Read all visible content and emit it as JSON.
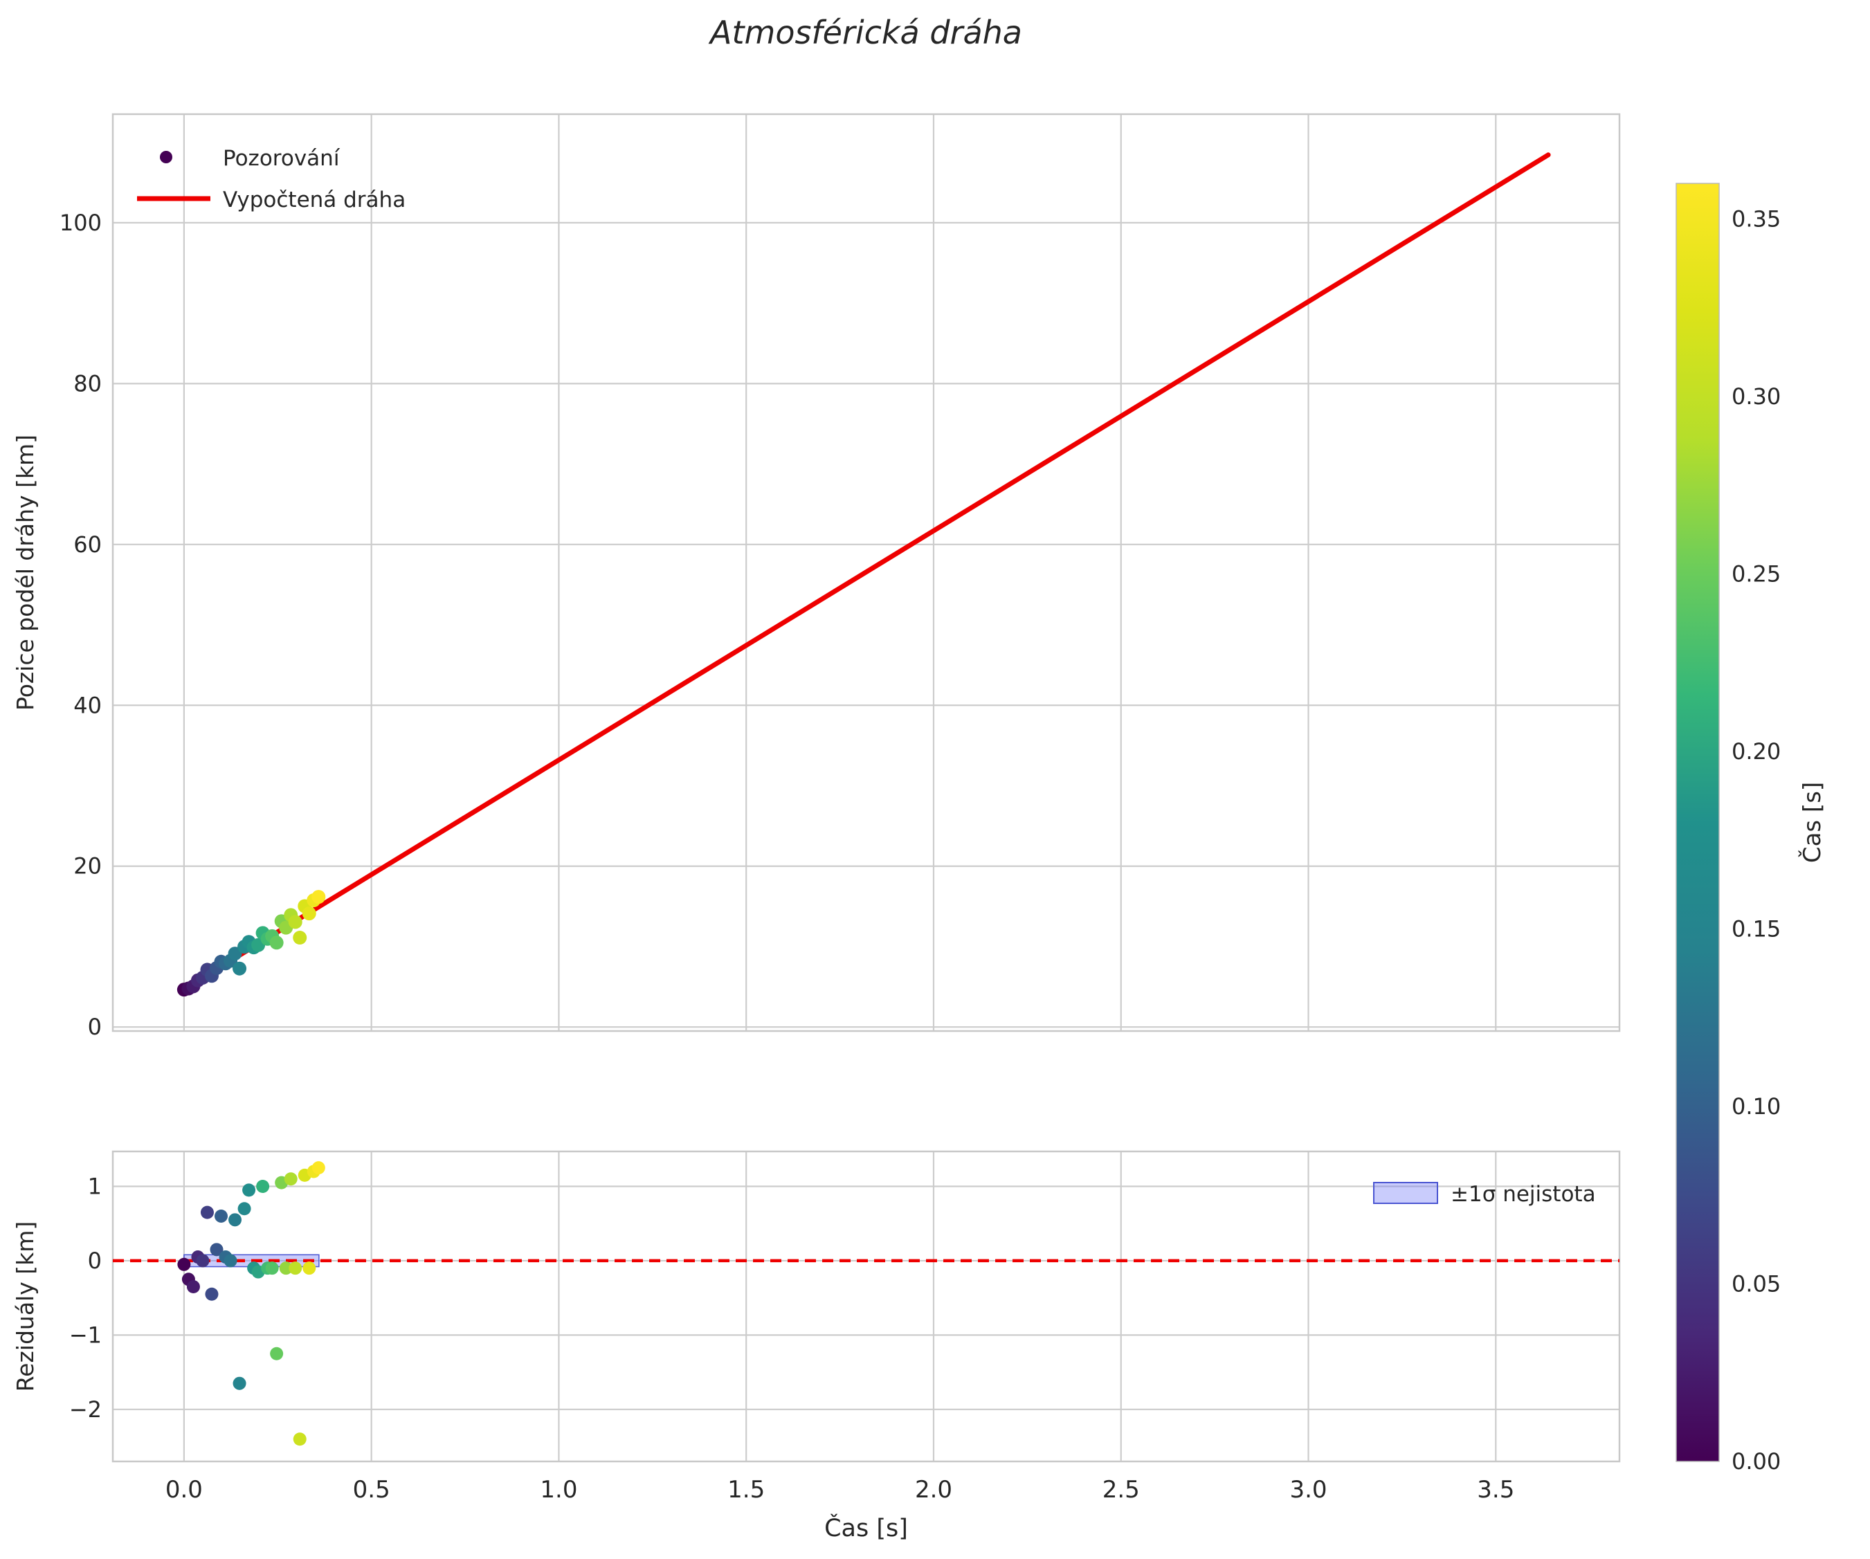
{
  "figure": {
    "title": "Atmosférická dráha",
    "bg": "#ffffff",
    "grid_color": "#cccccc",
    "axes_edge_color": "#c8c8c8",
    "text_color": "#262626"
  },
  "chart_data": [
    {
      "type": "scatter",
      "name": "trajectory",
      "ylabel": "Pozice podél dráhy [km]",
      "xlim": [
        -0.19,
        3.83
      ],
      "ylim": [
        -0.5,
        113.5
      ],
      "xticks": [
        0.0,
        0.5,
        1.0,
        1.5,
        2.0,
        2.5,
        3.0,
        3.5
      ],
      "yticks": [
        0,
        20,
        40,
        60,
        80,
        100
      ],
      "ytick_labels": [
        "0",
        "20",
        "40",
        "60",
        "80",
        "100"
      ],
      "legend": [
        {
          "label": "Pozorování",
          "handle": "marker"
        },
        {
          "label": "Vypočtená dráha",
          "handle": "line"
        }
      ],
      "fit_line": {
        "color": "#ee0000",
        "t_start": 0.0,
        "t_end": 3.64,
        "s0": 4.7,
        "v": 28.5
      },
      "points": {
        "t": [
          0.0,
          0.012,
          0.025,
          0.037,
          0.05,
          0.062,
          0.074,
          0.087,
          0.099,
          0.111,
          0.124,
          0.136,
          0.148,
          0.161,
          0.173,
          0.186,
          0.198,
          0.21,
          0.223,
          0.235,
          0.247,
          0.26,
          0.272,
          0.285,
          0.297,
          0.309,
          0.322,
          0.334,
          0.346,
          0.359
        ],
        "s": [
          4.65,
          4.79,
          5.06,
          5.8,
          6.13,
          7.12,
          6.36,
          7.33,
          8.12,
          7.91,
          8.23,
          9.13,
          7.27,
          9.99,
          10.58,
          9.9,
          10.19,
          11.69,
          10.96,
          11.3,
          10.49,
          13.16,
          12.35,
          13.92,
          13.06,
          11.11,
          15.03,
          14.12,
          15.76,
          16.18
        ]
      }
    },
    {
      "type": "scatter",
      "name": "residuals",
      "xlabel": "Čas [s]",
      "ylabel": "Reziduály [km]",
      "xlim": [
        -0.19,
        3.83
      ],
      "ylim": [
        -2.7,
        1.47
      ],
      "xticks": [
        0.0,
        0.5,
        1.0,
        1.5,
        2.0,
        2.5,
        3.0,
        3.5
      ],
      "xtick_labels": [
        "0.0",
        "0.5",
        "1.0",
        "1.5",
        "2.0",
        "2.5",
        "3.0",
        "3.5"
      ],
      "yticks": [
        1,
        0,
        -1,
        -2
      ],
      "ytick_labels": [
        "1",
        "0",
        "−1",
        "−2"
      ],
      "zero_line": {
        "color": "#ee0000",
        "style": "dashed"
      },
      "band": {
        "label": "±1σ nejistota",
        "t_start": 0.0,
        "t_end": 0.36,
        "half_width": 0.08,
        "fill": "rgba(100,110,245,0.35)",
        "edge": "#4a55d2"
      },
      "points": {
        "t": [
          0.0,
          0.012,
          0.025,
          0.037,
          0.05,
          0.062,
          0.074,
          0.087,
          0.099,
          0.111,
          0.124,
          0.136,
          0.148,
          0.161,
          0.173,
          0.186,
          0.198,
          0.21,
          0.223,
          0.235,
          0.247,
          0.26,
          0.272,
          0.285,
          0.297,
          0.309,
          0.322,
          0.334,
          0.346,
          0.359
        ],
        "resid": [
          -0.05,
          -0.25,
          -0.35,
          0.05,
          0.0,
          0.65,
          -0.45,
          0.15,
          0.6,
          0.05,
          0.0,
          0.55,
          -1.65,
          0.7,
          0.95,
          -0.1,
          -0.15,
          1.0,
          -0.1,
          -0.1,
          -1.25,
          1.05,
          -0.1,
          1.1,
          -0.1,
          -2.4,
          1.15,
          -0.1,
          1.2,
          1.25
        ]
      }
    }
  ],
  "colorbar": {
    "label": "Čas [s]",
    "min": 0.0,
    "max": 0.36,
    "ticks": [
      0.0,
      0.05,
      0.1,
      0.15,
      0.2,
      0.25,
      0.3,
      0.35
    ],
    "tick_labels": [
      "0.00",
      "0.05",
      "0.10",
      "0.15",
      "0.20",
      "0.25",
      "0.30",
      "0.35"
    ],
    "viridis_stops": [
      "#440154",
      "#482878",
      "#3e4989",
      "#31688e",
      "#26828e",
      "#21918c",
      "#35b779",
      "#6dcd59",
      "#b5de2b",
      "#dce319",
      "#fde725"
    ]
  }
}
